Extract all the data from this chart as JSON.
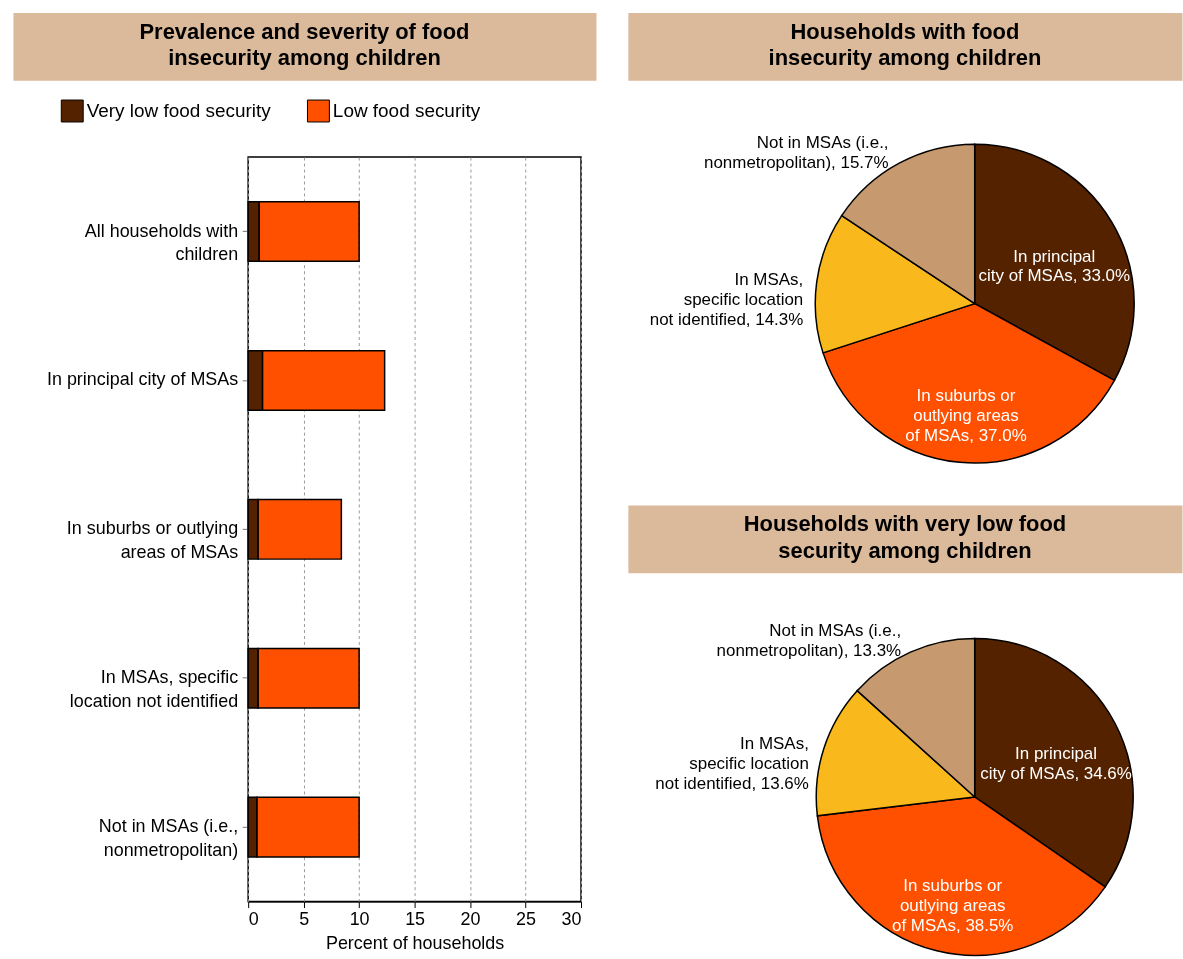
{
  "chart_data": [
    {
      "type": "bar",
      "orientation": "horizontal",
      "stacked": true,
      "title": "Prevalence and severity of food insecurity among children",
      "xlabel": "Percent of households",
      "categories": [
        "All households with children",
        "In principal city of MSAs",
        "In suburbs or outlying areas of MSAs",
        "In MSAs, specific location not identified",
        "Not in MSAs (i.e., nonmetropolitan)"
      ],
      "series": [
        {
          "name": "Very low food security",
          "color": "#552200",
          "values": [
            1.0,
            1.3,
            0.9,
            0.9,
            0.8
          ]
        },
        {
          "name": "Low food security",
          "color": "#ff5000",
          "values": [
            9.0,
            11.0,
            7.5,
            9.1,
            9.2
          ]
        }
      ],
      "xlim": [
        0,
        30
      ],
      "xticks": [
        0,
        5,
        10,
        15,
        20,
        25,
        30
      ],
      "grid": "x",
      "legend": "top"
    },
    {
      "type": "pie",
      "title": "Households with food insecurity among children",
      "categories": [
        "In principal city of MSAs",
        "In suburbs or outlying areas of MSAs",
        "In MSAs, specific location not identified",
        "Not in MSAs (i.e., nonmetropolitan)"
      ],
      "values": [
        33.0,
        37.0,
        14.3,
        15.7
      ],
      "colors": [
        "#552200",
        "#ff5000",
        "#f9b81b",
        "#c69a6e"
      ],
      "value_labels": [
        "33.0%",
        "37.0%",
        "14.3%",
        "15.7%"
      ]
    },
    {
      "type": "pie",
      "title": "Households with very low food security among children",
      "categories": [
        "In principal city of MSAs",
        "In suburbs or outlying areas of MSAs",
        "In MSAs, specific location not identified",
        "Not in MSAs (i.e., nonmetropolitan)"
      ],
      "values": [
        34.6,
        38.5,
        13.6,
        13.3
      ],
      "colors": [
        "#552200",
        "#ff5000",
        "#f9b81b",
        "#c69a6e"
      ],
      "value_labels": [
        "34.6%",
        "38.5%",
        "13.6%",
        "13.3%"
      ]
    }
  ]
}
